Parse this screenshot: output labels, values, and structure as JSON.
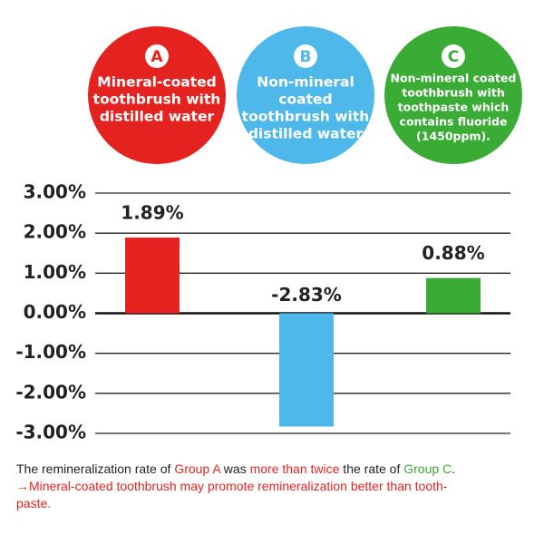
{
  "chart_data": {
    "type": "bar",
    "categories": [
      "A",
      "B",
      "C"
    ],
    "category_descriptions": [
      [
        "Mineral-coated",
        "toothbrush with",
        "distilled water"
      ],
      [
        "Non-mineral",
        "coated",
        "toothbrush with",
        "distilled water"
      ],
      [
        "Non-mineral coated",
        "toothbrush with",
        "toothpaste which",
        "contains fluoride",
        "(1450ppm)."
      ]
    ],
    "colors": [
      "#e42320",
      "#4db8e9",
      "#3aab35"
    ],
    "values": [
      1.89,
      -2.83,
      0.88
    ],
    "value_labels": [
      "1.89%",
      "-2.83%",
      "0.88%"
    ],
    "ylim": [
      -3,
      3
    ],
    "yticks": [
      {
        "value": 3,
        "label": "3.00%"
      },
      {
        "value": 2,
        "label": "2.00%"
      },
      {
        "value": 1,
        "label": "1.00%"
      },
      {
        "value": 0,
        "label": "0.00%"
      },
      {
        "value": -1,
        "label": "-1.00%"
      },
      {
        "value": -2,
        "label": "-2.00%"
      },
      {
        "value": -3,
        "label": "-3.00%"
      }
    ],
    "grid": true
  },
  "footnote": [
    [
      {
        "text": "The remineralization rate of ",
        "color": "#222222"
      },
      {
        "text": "Group A",
        "color": "#e42320"
      },
      {
        "text": " was ",
        "color": "#222222"
      },
      {
        "text": "more than twice",
        "color": "#e42320"
      },
      {
        "text": " the rate of ",
        "color": "#222222"
      },
      {
        "text": "Group C",
        "color": "#3aab35"
      },
      {
        "text": ".",
        "color": "#222222"
      }
    ],
    [
      {
        "text": "→Mineral-coated toothbrush may promote remineralization better than tooth-",
        "color": "#e42320"
      }
    ],
    [
      {
        "text": "paste.",
        "color": "#e42320"
      }
    ]
  ]
}
